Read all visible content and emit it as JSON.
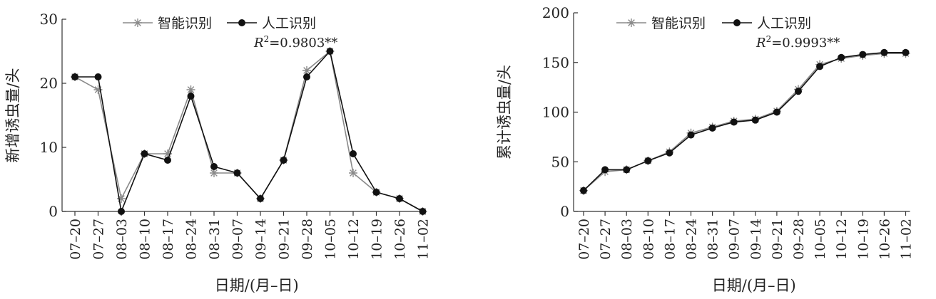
{
  "chart_data": [
    {
      "type": "line",
      "title": "",
      "xlabel": "日期/(月–日)",
      "ylabel": "新增诱虫量/头",
      "ylim": [
        0,
        30
      ],
      "yticks": [
        0,
        10,
        20,
        30
      ],
      "categories": [
        "07–20",
        "07–27",
        "08–03",
        "08–10",
        "08–17",
        "08–24",
        "08–31",
        "09–07",
        "09–14",
        "09–21",
        "09–28",
        "10–05",
        "10–12",
        "10–19",
        "10–26",
        "11–02"
      ],
      "series": [
        {
          "name": "智能识别",
          "marker": "asterisk",
          "color": "#8a8a8a",
          "values": [
            21,
            19,
            2,
            9,
            9,
            19,
            6,
            6,
            2,
            8,
            22,
            25,
            6,
            3,
            2,
            0
          ]
        },
        {
          "name": "人工识别",
          "marker": "circle",
          "color": "#111111",
          "values": [
            21,
            21,
            0,
            9,
            8,
            18,
            7,
            6,
            2,
            8,
            21,
            25,
            9,
            3,
            2,
            0
          ]
        }
      ],
      "annotation": {
        "r_label": "R",
        "sup": "2",
        "value": "=0.9803**"
      },
      "legend_position": "top-center",
      "grid": false
    },
    {
      "type": "line",
      "title": "",
      "xlabel": "日期/(月–日)",
      "ylabel": "累计诱虫量/头",
      "ylim": [
        0,
        200
      ],
      "yticks": [
        0,
        50,
        100,
        150,
        200
      ],
      "categories": [
        "07–20",
        "07–27",
        "08–03",
        "08–10",
        "08–17",
        "08–24",
        "08–31",
        "09–07",
        "09–14",
        "09–21",
        "09–28",
        "10–05",
        "10–12",
        "10–19",
        "10–26",
        "11–02"
      ],
      "series": [
        {
          "name": "智能识别",
          "marker": "asterisk",
          "color": "#8a8a8a",
          "values": [
            21,
            40,
            42,
            51,
            60,
            79,
            85,
            91,
            93,
            101,
            123,
            148,
            154,
            157,
            159,
            159
          ]
        },
        {
          "name": "人工识别",
          "marker": "circle",
          "color": "#111111",
          "values": [
            21,
            42,
            42,
            51,
            59,
            77,
            84,
            90,
            92,
            100,
            121,
            146,
            155,
            158,
            160,
            160
          ]
        }
      ],
      "annotation": {
        "r_label": "R",
        "sup": "2",
        "value": "=0.9993**"
      },
      "legend_position": "top-center",
      "grid": false
    }
  ]
}
